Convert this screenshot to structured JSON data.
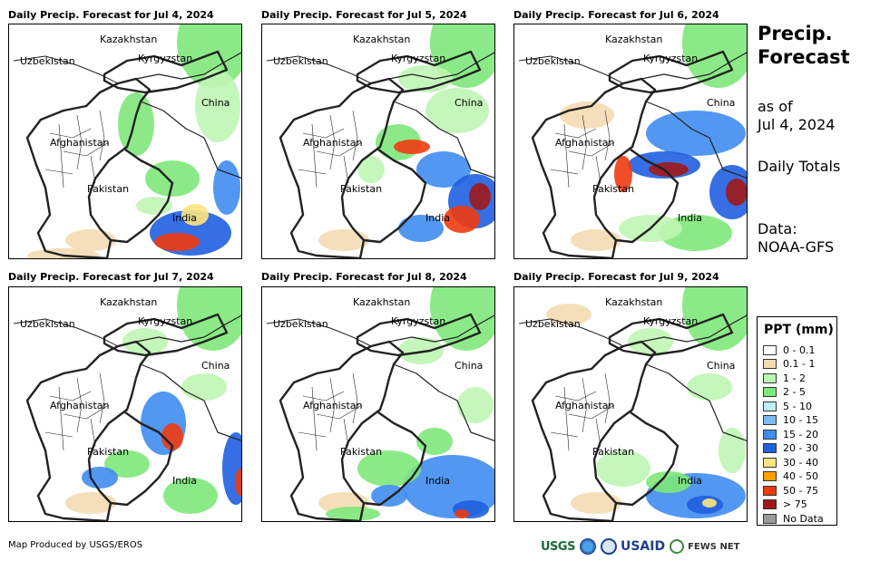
{
  "panels": [
    {
      "title": "Daily Precip. Forecast for Jul 4, 2024"
    },
    {
      "title": "Daily Precip. Forecast for Jul 5, 2024"
    },
    {
      "title": "Daily Precip. Forecast for Jul 6, 2024"
    },
    {
      "title": "Daily Precip. Forecast for Jul 7, 2024"
    },
    {
      "title": "Daily Precip. Forecast for Jul 8, 2024"
    },
    {
      "title": "Daily Precip. Forecast for Jul 9, 2024"
    }
  ],
  "country_labels": {
    "kazakhstan": "Kazakhstan",
    "uzbekistan": "Uzbekistan",
    "kyrgyzstan": "Kyrgyzstan",
    "china": "China",
    "afghanistan": "Afghanistan",
    "pakistan": "Pakistan",
    "india": "India"
  },
  "side": {
    "title_line1": "Precip.",
    "title_line2": "Forecast",
    "asof_line1": "as of",
    "asof_line2": "Jul 4, 2024",
    "totals": "Daily Totals",
    "data_line1": "Data:",
    "data_line2": "NOAA-GFS"
  },
  "legend": {
    "title": "PPT (mm)",
    "items": [
      {
        "label": "0 - 0.1",
        "color": "#ffffff"
      },
      {
        "label": "0.1 - 1",
        "color": "#f3dcb2"
      },
      {
        "label": "1 - 2",
        "color": "#bff5b4"
      },
      {
        "label": "2 - 5",
        "color": "#7ee87a"
      },
      {
        "label": "5 - 10",
        "color": "#bfeeff"
      },
      {
        "label": "10 - 15",
        "color": "#7bbcf5"
      },
      {
        "label": "15 - 20",
        "color": "#3f8cf0"
      },
      {
        "label": "20 - 30",
        "color": "#1f5fe0"
      },
      {
        "label": "30 - 40",
        "color": "#ffe680"
      },
      {
        "label": "40 - 50",
        "color": "#ffa000"
      },
      {
        "label": "50 - 75",
        "color": "#f03a10"
      },
      {
        "label": "> 75",
        "color": "#a01818"
      },
      {
        "label": "No Data",
        "color": "#9a9a9a"
      }
    ]
  },
  "credit": "Map Produced by USGS/EROS",
  "logos": {
    "usgs": "USGS",
    "usaid": "USAID",
    "fews": "FEWS NET"
  }
}
